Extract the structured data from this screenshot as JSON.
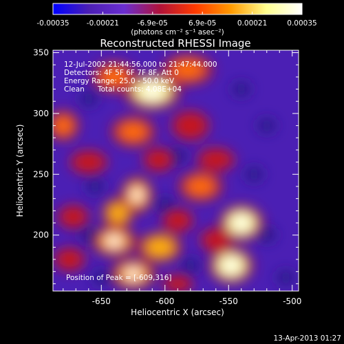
{
  "chart_data": {
    "type": "heatmap",
    "title": "Reconstructed RHESSI Image",
    "xlabel": "Heliocentric X (arcsec)",
    "ylabel": "Heliocentric Y (arcsec)",
    "xlim": [
      -688,
      -495
    ],
    "ylim": [
      154,
      352
    ],
    "x_ticks": [
      -650,
      -600,
      -550,
      -500
    ],
    "x_tick_labels": [
      "-650",
      "-600",
      "-550",
      "-500"
    ],
    "y_ticks": [
      200,
      250,
      300,
      350
    ],
    "y_tick_labels": [
      "200",
      "250",
      "300",
      "350"
    ],
    "colorbar": {
      "range": [
        -0.00035,
        0.00035
      ],
      "tick_labels": [
        "-0.00035",
        "-0.00021",
        "-6.9e-05",
        "6.9e-05",
        "0.00021",
        "0.00035"
      ],
      "units_label": "(photons cm⁻² s⁻¹ asec⁻²)",
      "colors": [
        "#0000ff",
        "#4b1fb4",
        "#6a2ed0",
        "#b0123a",
        "#ff3a00",
        "#ff9a00",
        "#ffff90",
        "#ffffff"
      ]
    },
    "annotations": {
      "time_range": "12-Jul-2002 21:44:56.000 to 21:47:44.000",
      "detectors": "Detectors: 4F 5F 6F 7F 8F, Att 0",
      "energy_range": "Energy Range: 25.0 - 50.0 keV",
      "method": "Clean",
      "total_counts": "Total counts: 4.08E+04",
      "peak": "Position of Peak = [-609,316]"
    },
    "peak_position": [
      -609,
      316
    ],
    "blobs": [
      {
        "x": -610,
        "y": 318,
        "v": 1.0,
        "rx": 18,
        "ry": 12
      },
      {
        "x": -640,
        "y": 330,
        "v": 0.75,
        "rx": 14,
        "ry": 10
      },
      {
        "x": -582,
        "y": 336,
        "v": 0.7,
        "rx": 16,
        "ry": 10
      },
      {
        "x": -680,
        "y": 290,
        "v": 0.7,
        "rx": 10,
        "ry": 10
      },
      {
        "x": -625,
        "y": 285,
        "v": 0.65,
        "rx": 14,
        "ry": 10
      },
      {
        "x": -580,
        "y": 290,
        "v": 0.55,
        "rx": 12,
        "ry": 10
      },
      {
        "x": -660,
        "y": 260,
        "v": 0.5,
        "rx": 12,
        "ry": 8
      },
      {
        "x": -605,
        "y": 262,
        "v": 0.55,
        "rx": 10,
        "ry": 8
      },
      {
        "x": -560,
        "y": 262,
        "v": 0.5,
        "rx": 12,
        "ry": 8
      },
      {
        "x": -622,
        "y": 233,
        "v": 0.85,
        "rx": 10,
        "ry": 12
      },
      {
        "x": -637,
        "y": 218,
        "v": 0.8,
        "rx": 10,
        "ry": 10
      },
      {
        "x": -572,
        "y": 240,
        "v": 0.7,
        "rx": 14,
        "ry": 10
      },
      {
        "x": -672,
        "y": 215,
        "v": 0.55,
        "rx": 10,
        "ry": 8
      },
      {
        "x": -540,
        "y": 210,
        "v": 0.95,
        "rx": 14,
        "ry": 12
      },
      {
        "x": -590,
        "y": 212,
        "v": 0.6,
        "rx": 10,
        "ry": 8
      },
      {
        "x": -640,
        "y": 195,
        "v": 0.85,
        "rx": 14,
        "ry": 10
      },
      {
        "x": -604,
        "y": 190,
        "v": 0.8,
        "rx": 14,
        "ry": 10
      },
      {
        "x": -548,
        "y": 175,
        "v": 1.0,
        "rx": 14,
        "ry": 12
      },
      {
        "x": -560,
        "y": 196,
        "v": 0.6,
        "rx": 10,
        "ry": 8
      },
      {
        "x": -675,
        "y": 180,
        "v": 0.55,
        "rx": 10,
        "ry": 8
      },
      {
        "x": -625,
        "y": 168,
        "v": 0.85,
        "rx": 14,
        "ry": 10
      },
      {
        "x": -590,
        "y": 160,
        "v": 0.5,
        "rx": 10,
        "ry": 6
      }
    ]
  },
  "footer": {
    "timestamp": "13-Apr-2013 01:27"
  }
}
